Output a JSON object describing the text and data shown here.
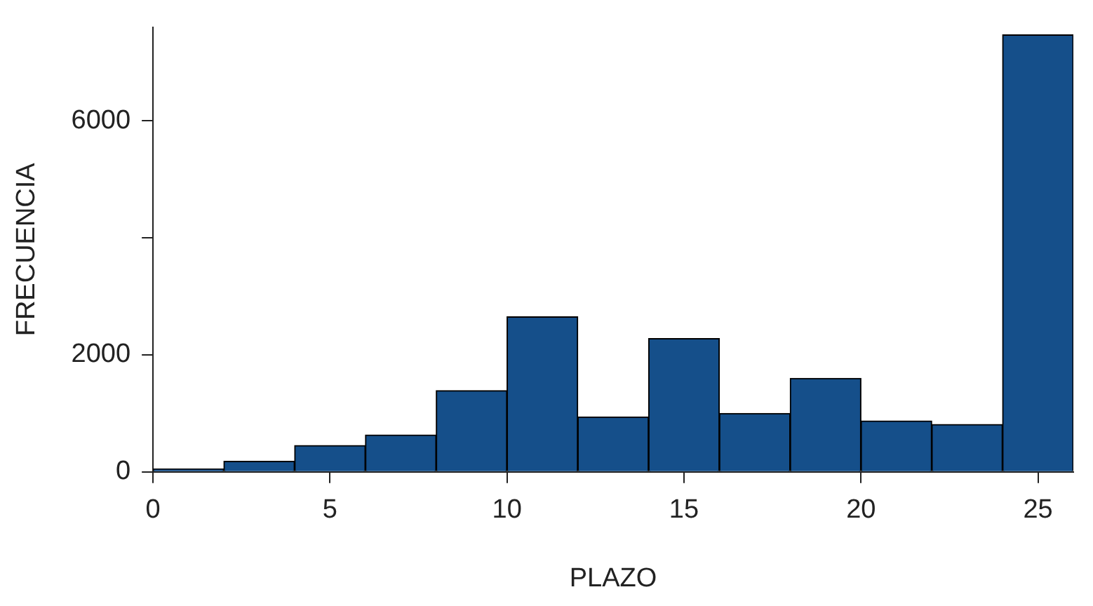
{
  "chart_data": {
    "type": "histogram",
    "xlabel": "PLAZO",
    "ylabel": "FRECUENCIA",
    "bins": [
      0,
      2,
      4,
      6,
      8,
      10,
      12,
      14,
      16,
      18,
      20,
      22,
      24,
      26
    ],
    "values": [
      50,
      180,
      450,
      630,
      1390,
      2650,
      940,
      2280,
      1000,
      1600,
      870,
      810,
      7470
    ],
    "color": "#154f8a",
    "xlim": [
      0,
      26
    ],
    "xticks": [
      0,
      5,
      10,
      15,
      20,
      25
    ],
    "ylim": [
      0,
      7600
    ],
    "yticks": [
      0,
      2000,
      {
        "value": 4000,
        "label": null
      },
      6000
    ],
    "grid": false,
    "legend": false
  }
}
